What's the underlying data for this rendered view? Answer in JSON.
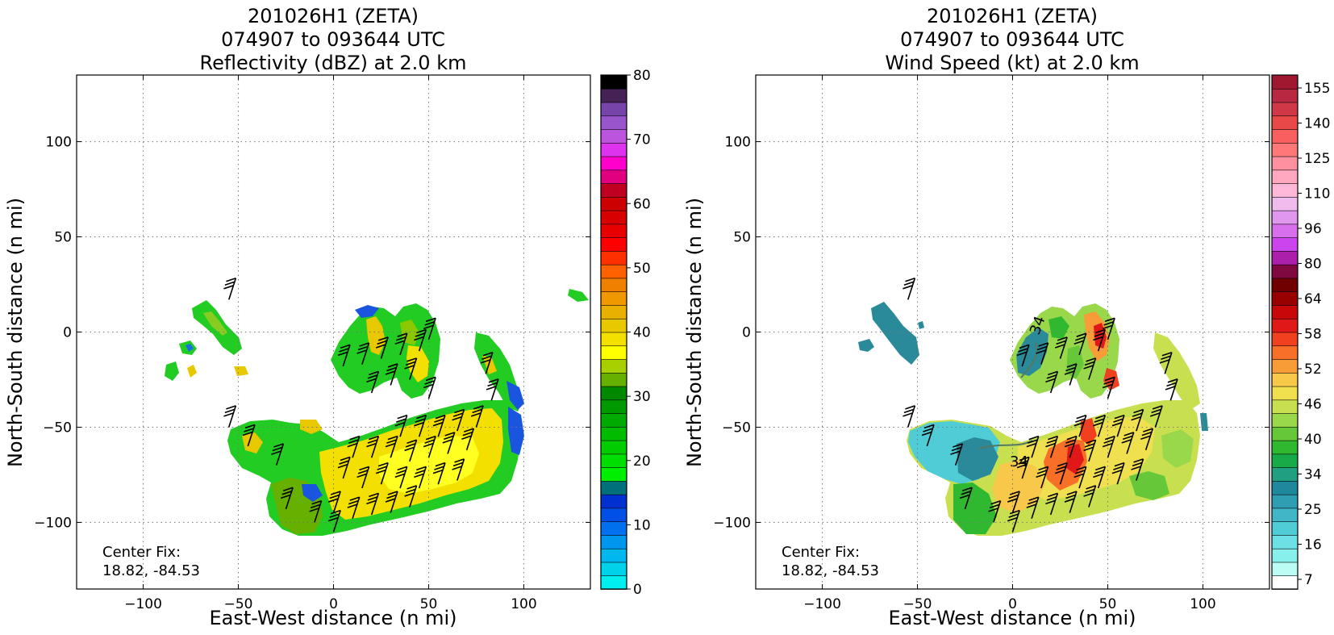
{
  "chart_data": [
    {
      "type": "heatmap",
      "title": [
        "201026H1 (ZETA)",
        "074907 to 093644 UTC",
        "Reflectivity (dBZ) at 2.0 km"
      ],
      "xlabel": "East-West distance (n mi)",
      "ylabel": "North-South distance (n mi)",
      "xlim": [
        -135,
        135
      ],
      "ylim": [
        -135,
        135
      ],
      "xticks": [
        -100,
        -50,
        0,
        50,
        100
      ],
      "yticks": [
        -100,
        -50,
        0,
        50,
        100
      ],
      "xtick_labels": [
        "−100",
        "−50",
        "0",
        "50",
        "100"
      ],
      "ytick_labels": [
        "−100",
        "−50",
        "0",
        "50",
        "100"
      ],
      "grid": true,
      "annotation": [
        "Center Fix:",
        "18.82, -84.53"
      ],
      "colorbar": {
        "min": 0,
        "max": 80,
        "ticks": [
          0,
          10,
          20,
          30,
          40,
          50,
          60,
          70,
          80
        ],
        "tick_labels": [
          "0",
          "10",
          "20",
          "30",
          "40",
          "50",
          "60",
          "70",
          "80"
        ],
        "colors": [
          "#00eeee",
          "#00d2ea",
          "#00b8ee",
          "#0096ee",
          "#0070ee",
          "#0050e8",
          "#0030d0",
          "#00707a",
          "#00ee00",
          "#00dd00",
          "#00cc00",
          "#00bb00",
          "#00aa00",
          "#009900",
          "#008800",
          "#66b000",
          "#a8d000",
          "#ffff00",
          "#f4e000",
          "#e8c800",
          "#e8b000",
          "#f09800",
          "#f08000",
          "#ff6000",
          "#ff3000",
          "#ff0000",
          "#e80000",
          "#d80000",
          "#cc0000",
          "#c00020",
          "#e00080",
          "#ff00cc",
          "#dd33ee",
          "#bb55dd",
          "#9955cc",
          "#7744aa",
          "#442255",
          "#000000"
        ]
      },
      "barbs": [
        {
          "x": -55,
          "y": 17
        },
        {
          "x": -55,
          "y": -50
        },
        {
          "x": -45,
          "y": -60
        },
        {
          "x": -30,
          "y": -70
        },
        {
          "x": -25,
          "y": -93
        },
        {
          "x": -10,
          "y": -100
        },
        {
          "x": 0,
          "y": -105
        },
        {
          "x": 0,
          "y": -95
        },
        {
          "x": 10,
          "y": -98
        },
        {
          "x": 20,
          "y": -96
        },
        {
          "x": 30,
          "y": -95
        },
        {
          "x": 40,
          "y": -92
        },
        {
          "x": 5,
          "y": -77
        },
        {
          "x": 15,
          "y": -82
        },
        {
          "x": 25,
          "y": -80
        },
        {
          "x": 35,
          "y": -82
        },
        {
          "x": 45,
          "y": -82
        },
        {
          "x": 55,
          "y": -80
        },
        {
          "x": 65,
          "y": -78
        },
        {
          "x": 10,
          "y": -66
        },
        {
          "x": 20,
          "y": -66
        },
        {
          "x": 30,
          "y": -66
        },
        {
          "x": 40,
          "y": -68
        },
        {
          "x": 50,
          "y": -66
        },
        {
          "x": 60,
          "y": -64
        },
        {
          "x": 70,
          "y": -62
        },
        {
          "x": 35,
          "y": -55
        },
        {
          "x": 45,
          "y": -55
        },
        {
          "x": 55,
          "y": -55
        },
        {
          "x": 65,
          "y": -52
        },
        {
          "x": 75,
          "y": -50
        },
        {
          "x": 5,
          "y": -18
        },
        {
          "x": 15,
          "y": -17
        },
        {
          "x": 25,
          "y": -14
        },
        {
          "x": 35,
          "y": -12
        },
        {
          "x": 45,
          "y": -10
        },
        {
          "x": 50,
          "y": -4
        },
        {
          "x": 20,
          "y": -32
        },
        {
          "x": 30,
          "y": -28
        },
        {
          "x": 40,
          "y": -25
        },
        {
          "x": 50,
          "y": -35
        },
        {
          "x": 80,
          "y": -22
        },
        {
          "x": 83,
          "y": -36
        }
      ]
    },
    {
      "type": "heatmap",
      "title": [
        "201026H1 (ZETA)",
        "074907 to 093644 UTC",
        "Wind Speed (kt) at 2.0 km"
      ],
      "xlabel": "East-West distance (n mi)",
      "ylabel": "North-South distance (n mi)",
      "xlim": [
        -135,
        135
      ],
      "ylim": [
        -135,
        135
      ],
      "xticks": [
        -100,
        -50,
        0,
        50,
        100
      ],
      "yticks": [
        -100,
        -50,
        0,
        50,
        100
      ],
      "xtick_labels": [
        "−100",
        "−50",
        "0",
        "50",
        "100"
      ],
      "ytick_labels": [
        "−100",
        "−50",
        "0",
        "50",
        "100"
      ],
      "grid": true,
      "annotation": [
        "Center Fix:",
        "18.82, -84.53"
      ],
      "contour_labels": [
        "34",
        "34"
      ],
      "colorbar": {
        "ticks_top_to_bottom": [
          "155",
          "140",
          "125",
          "110",
          "96",
          "80",
          "64",
          "58",
          "52",
          "46",
          "40",
          "34",
          "25",
          "16",
          "7"
        ],
        "colors_bottom_to_top": [
          "#ffffff",
          "#bbfcf4",
          "#88f0ec",
          "#6ce0e4",
          "#50ccd6",
          "#40b6c6",
          "#309eb2",
          "#20889c",
          "#20a080",
          "#18aa48",
          "#30b830",
          "#66c838",
          "#99d84a",
          "#c8e050",
          "#f0e050",
          "#f8c84a",
          "#f89c38",
          "#f87028",
          "#f04020",
          "#e01818",
          "#c80808",
          "#980000",
          "#700000",
          "#800840",
          "#aa20aa",
          "#cc44ee",
          "#d870ee",
          "#e098ee",
          "#f0bcee",
          "#ffb8d8",
          "#ffa8c0",
          "#ff90a0",
          "#ff7878",
          "#f86060",
          "#e84848",
          "#d03848",
          "#b82840",
          "#a01830"
        ]
      },
      "barbs": [
        {
          "x": -55,
          "y": 17
        },
        {
          "x": -55,
          "y": -50
        },
        {
          "x": -45,
          "y": -60
        },
        {
          "x": -30,
          "y": -70
        },
        {
          "x": -25,
          "y": -93
        },
        {
          "x": -10,
          "y": -100
        },
        {
          "x": 0,
          "y": -105
        },
        {
          "x": 0,
          "y": -95
        },
        {
          "x": 10,
          "y": -98
        },
        {
          "x": 20,
          "y": -96
        },
        {
          "x": 30,
          "y": -95
        },
        {
          "x": 40,
          "y": -92
        },
        {
          "x": 5,
          "y": -77
        },
        {
          "x": 15,
          "y": -82
        },
        {
          "x": 25,
          "y": -80
        },
        {
          "x": 35,
          "y": -82
        },
        {
          "x": 45,
          "y": -82
        },
        {
          "x": 55,
          "y": -80
        },
        {
          "x": 65,
          "y": -78
        },
        {
          "x": 10,
          "y": -66
        },
        {
          "x": 20,
          "y": -66
        },
        {
          "x": 30,
          "y": -66
        },
        {
          "x": 40,
          "y": -68
        },
        {
          "x": 50,
          "y": -66
        },
        {
          "x": 60,
          "y": -64
        },
        {
          "x": 70,
          "y": -62
        },
        {
          "x": 35,
          "y": -55
        },
        {
          "x": 45,
          "y": -55
        },
        {
          "x": 55,
          "y": -55
        },
        {
          "x": 65,
          "y": -52
        },
        {
          "x": 75,
          "y": -50
        },
        {
          "x": 5,
          "y": -18
        },
        {
          "x": 15,
          "y": -17
        },
        {
          "x": 25,
          "y": -14
        },
        {
          "x": 35,
          "y": -12
        },
        {
          "x": 45,
          "y": -10
        },
        {
          "x": 50,
          "y": -4
        },
        {
          "x": 20,
          "y": -32
        },
        {
          "x": 30,
          "y": -28
        },
        {
          "x": 40,
          "y": -25
        },
        {
          "x": 50,
          "y": -35
        },
        {
          "x": 80,
          "y": -22
        },
        {
          "x": 83,
          "y": -36
        }
      ]
    }
  ]
}
